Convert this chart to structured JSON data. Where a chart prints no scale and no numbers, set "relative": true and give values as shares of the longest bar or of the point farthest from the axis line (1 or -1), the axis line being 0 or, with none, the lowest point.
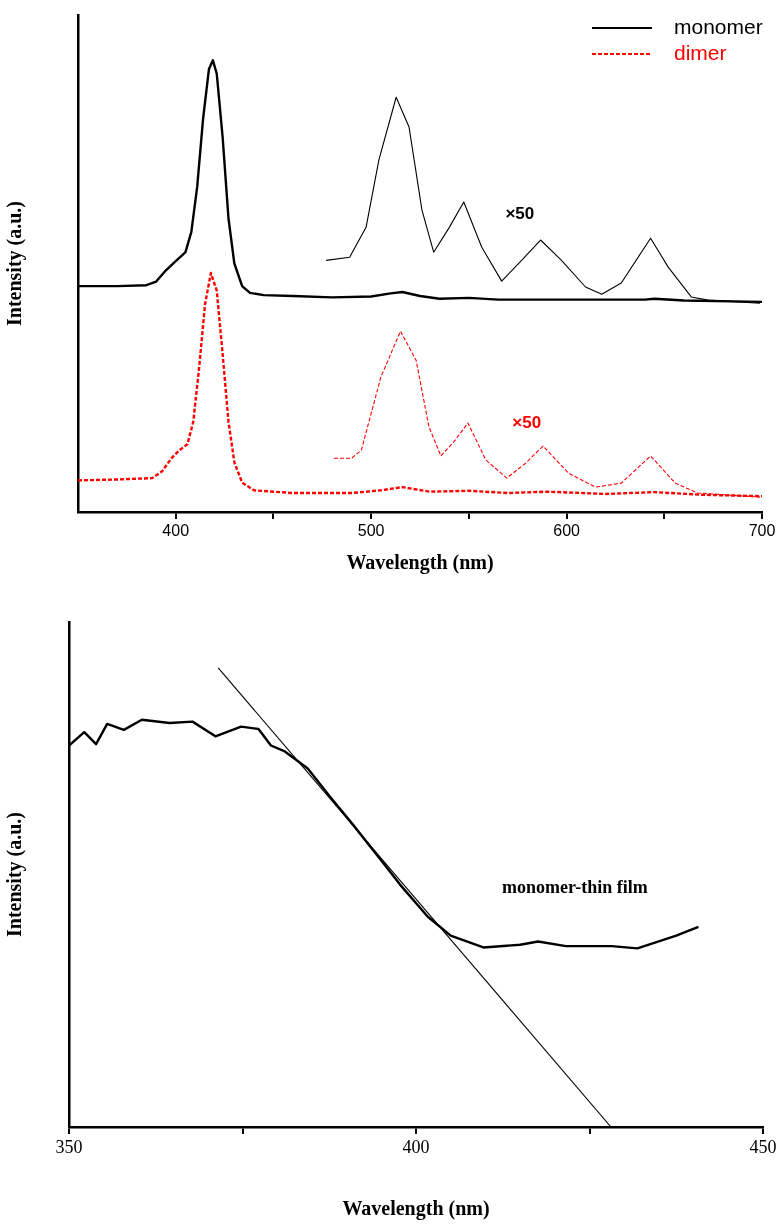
{
  "chart_data": [
    {
      "type": "line",
      "xlabel": "Wavelength (nm)",
      "ylabel": "Intensity (a.u.)",
      "relative": true,
      "xlim": [
        350,
        700
      ],
      "xticks": [
        400,
        {
          "value": 450,
          "label": null
        },
        500,
        {
          "value": 550,
          "label": null
        },
        600,
        {
          "value": 650,
          "label": null
        },
        700
      ],
      "tick_labels": "x",
      "legend": "top right",
      "series": [
        {
          "name": "monomer",
          "color": "#000000",
          "line_style": "solid",
          "x": [
            350,
            370,
            385,
            390,
            395,
            400,
            405,
            408,
            411,
            414,
            417,
            419,
            421,
            424,
            427,
            430,
            434,
            438,
            445,
            460,
            480,
            500,
            510,
            516,
            525,
            535,
            550,
            565,
            600,
            640,
            645,
            660,
            700
          ],
          "values": [
            0.5,
            0.5,
            0.502,
            0.51,
            0.535,
            0.555,
            0.575,
            0.62,
            0.72,
            0.87,
            0.98,
            1.0,
            0.97,
            0.83,
            0.65,
            0.55,
            0.5,
            0.485,
            0.48,
            0.478,
            0.475,
            0.477,
            0.484,
            0.487,
            0.478,
            0.472,
            0.474,
            0.47,
            0.47,
            0.47,
            0.472,
            0.468,
            0.465
          ]
        },
        {
          "name": "×50",
          "color": "#000000",
          "line_style": "solid",
          "x": [
            477,
            489,
            497.4,
            504,
            512.8,
            519.4,
            526,
            532,
            540,
            547.4,
            556.6,
            566.8,
            577,
            586.7,
            597.4,
            609.7,
            618,
            628,
            643,
            652,
            663.8,
            672.4,
            699
          ],
          "values": [
            0.557,
            0.564,
            0.63,
            0.78,
            0.918,
            0.852,
            0.668,
            0.575,
            0.63,
            0.686,
            0.586,
            0.511,
            0.557,
            0.602,
            0.557,
            0.498,
            0.482,
            0.507,
            0.606,
            0.542,
            0.476,
            0.469,
            0.462
          ]
        },
        {
          "name": "dimer",
          "color": "#ff0000",
          "line_style": "dashed",
          "x": [
            350,
            370,
            388,
            393,
            398,
            402,
            406,
            409,
            412,
            415,
            418,
            421,
            424,
            427,
            430,
            434,
            440,
            460,
            490,
            505,
            516,
            530,
            550,
            570,
            590,
            620,
            645,
            670,
            700
          ],
          "values": [
            0.07,
            0.072,
            0.075,
            0.09,
            0.12,
            0.137,
            0.15,
            0.2,
            0.32,
            0.46,
            0.529,
            0.49,
            0.35,
            0.2,
            0.11,
            0.065,
            0.048,
            0.042,
            0.042,
            0.048,
            0.055,
            0.045,
            0.047,
            0.042,
            0.045,
            0.04,
            0.044,
            0.038,
            0.035
          ]
        },
        {
          "name": "×50",
          "color": "#ff0000",
          "line_style": "dashed",
          "x": [
            481,
            490,
            495,
            505,
            515,
            523,
            529.6,
            535.7,
            543,
            549.5,
            558.7,
            569.4,
            579,
            588,
            601,
            614.8,
            628,
            643,
            655.6,
            667,
            699
          ],
          "values": [
            0.119,
            0.119,
            0.137,
            0.299,
            0.4,
            0.336,
            0.188,
            0.124,
            0.159,
            0.197,
            0.115,
            0.075,
            0.108,
            0.146,
            0.086,
            0.055,
            0.064,
            0.124,
            0.064,
            0.042,
            0.033
          ]
        }
      ]
    },
    {
      "type": "line",
      "xlabel": "Wavelength (nm)",
      "ylabel": "Intensity (a.u.)",
      "relative": true,
      "xlim": [
        350,
        450
      ],
      "xticks": [
        350,
        {
          "value": 375,
          "label": null
        },
        400,
        {
          "value": 425,
          "label": null
        },
        450
      ],
      "tick_labels": "x",
      "series": [
        {
          "name": "monomer-thin film",
          "color": "#000000",
          "line_style": "solid",
          "x": [
            350,
            352.2,
            353.9,
            355.5,
            357.9,
            360.5,
            364.5,
            367.8,
            371.1,
            374.8,
            377.3,
            379.1,
            381.1,
            384.4,
            387.7,
            391,
            394.4,
            397.7,
            401.7,
            405,
            409.7,
            415,
            417.6,
            421.6,
            428.2,
            431.9,
            437.5,
            440.7
          ],
          "values": [
            0.831,
            0.86,
            0.834,
            0.878,
            0.865,
            0.887,
            0.88,
            0.883,
            0.851,
            0.872,
            0.867,
            0.831,
            0.818,
            0.781,
            0.718,
            0.657,
            0.592,
            0.528,
            0.458,
            0.417,
            0.391,
            0.397,
            0.404,
            0.394,
            0.394,
            0.389,
            0.417,
            0.436
          ]
        },
        {
          "color": "#000000",
          "line_style": "solid",
          "x": [
            371.5,
            428.1
          ],
          "values": [
            1,
            0
          ]
        }
      ]
    }
  ]
}
